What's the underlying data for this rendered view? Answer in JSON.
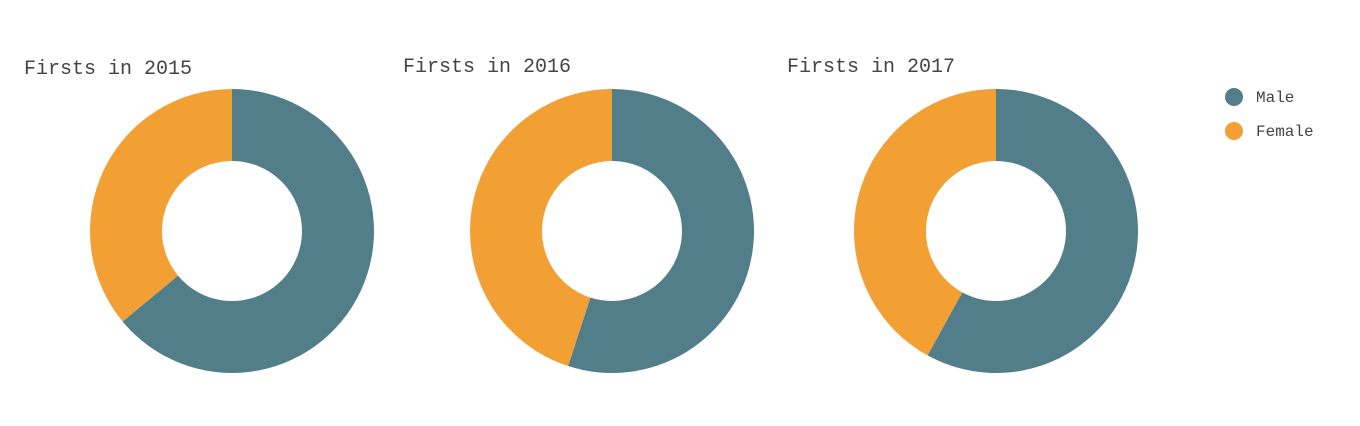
{
  "chart_data": [
    {
      "type": "pie",
      "title": "Firsts in 2015",
      "categories": [
        "Male",
        "Female"
      ],
      "values": [
        64,
        36
      ],
      "colors": [
        "#527e8a",
        "#f2a034"
      ]
    },
    {
      "type": "pie",
      "title": "Firsts in 2016",
      "categories": [
        "Male",
        "Female"
      ],
      "values": [
        55,
        45
      ],
      "colors": [
        "#527e8a",
        "#f2a034"
      ]
    },
    {
      "type": "pie",
      "title": "Firsts in 2017",
      "categories": [
        "Male",
        "Female"
      ],
      "values": [
        58,
        42
      ],
      "colors": [
        "#527e8a",
        "#f2a034"
      ]
    }
  ],
  "legend": {
    "placement": "top-right",
    "items": [
      {
        "label": "Male",
        "color": "#527e8a"
      },
      {
        "label": "Female",
        "color": "#f2a034"
      }
    ]
  }
}
